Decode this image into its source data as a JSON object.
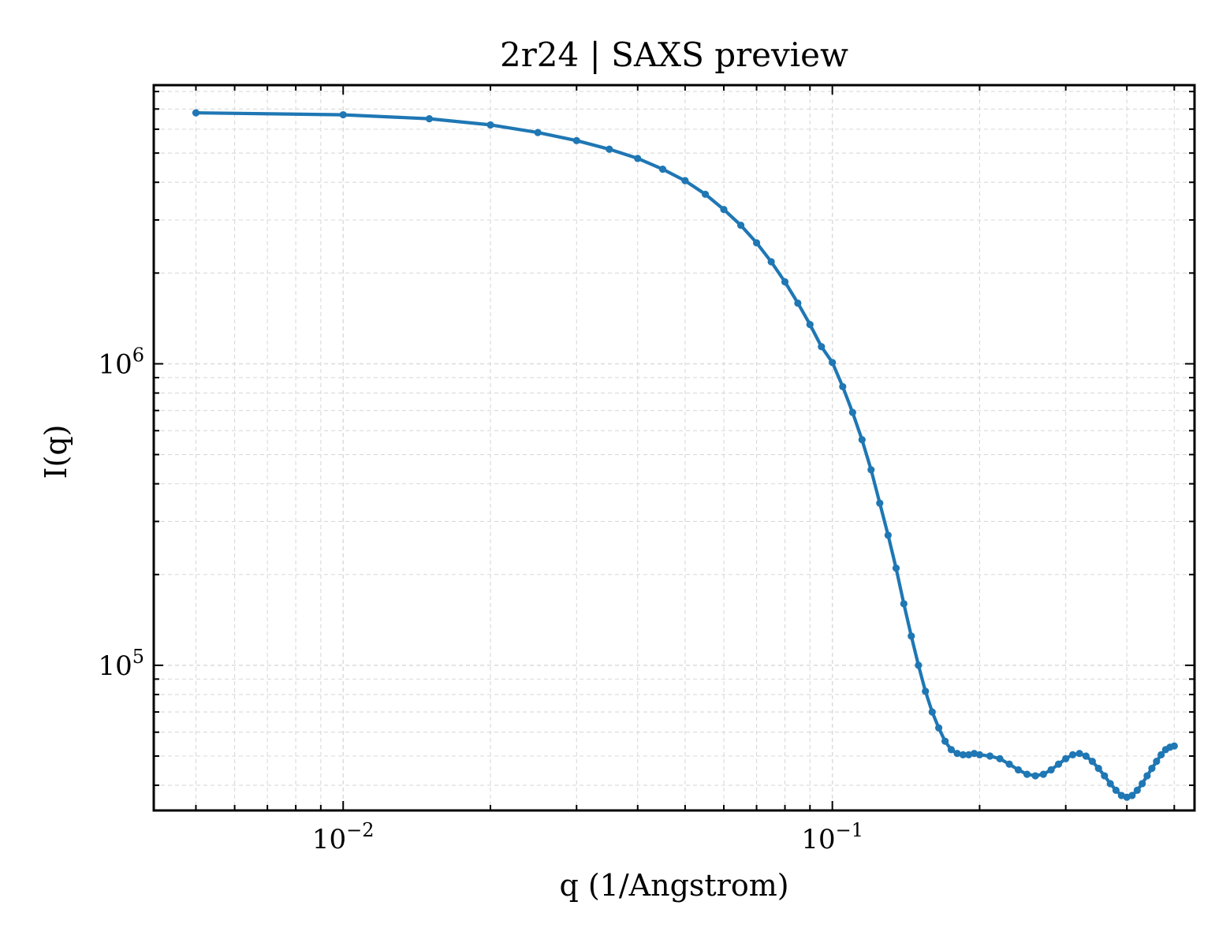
{
  "chart_data": {
    "type": "line",
    "title": "2r24 | SAXS preview",
    "xlabel": "q (1/Angstrom)",
    "ylabel": "I(q)",
    "xscale": "log",
    "yscale": "log",
    "xlim": [
      0.0041,
      0.55
    ],
    "ylim": [
      33000,
      8400000
    ],
    "grid": true,
    "grid_minor": true,
    "legend": "none",
    "colors": {
      "line": "#1f77b4",
      "grid": "#d9d9d9",
      "axes": "#000000"
    },
    "x_tick_labels": [
      {
        "value": 0.01,
        "base": "10",
        "exp": "−2"
      },
      {
        "value": 0.1,
        "base": "10",
        "exp": "−1"
      }
    ],
    "y_tick_labels": [
      {
        "value": 100000,
        "base": "10",
        "exp": "5"
      },
      {
        "value": 1000000,
        "base": "10",
        "exp": "6"
      }
    ],
    "series": [
      {
        "markers": true,
        "x": [
          0.005,
          0.01,
          0.015,
          0.02,
          0.025,
          0.03,
          0.035,
          0.04,
          0.045,
          0.05,
          0.055,
          0.06,
          0.065,
          0.07,
          0.075,
          0.08,
          0.085,
          0.09,
          0.095,
          0.1,
          0.105,
          0.11,
          0.115,
          0.12,
          0.125,
          0.13,
          0.135,
          0.14,
          0.145,
          0.15,
          0.155,
          0.16,
          0.165,
          0.17,
          0.175,
          0.18,
          0.185,
          0.19,
          0.195,
          0.2,
          0.21,
          0.22,
          0.23,
          0.24,
          0.25,
          0.26,
          0.27,
          0.28,
          0.29,
          0.3,
          0.31,
          0.32,
          0.33,
          0.34,
          0.35,
          0.36,
          0.37,
          0.38,
          0.39,
          0.4,
          0.41,
          0.42,
          0.43,
          0.44,
          0.45,
          0.46,
          0.47,
          0.48,
          0.49,
          0.5
        ],
        "y": [
          6800000,
          6700000,
          6500000,
          6200000,
          5850000,
          5500000,
          5150000,
          4800000,
          4420000,
          4050000,
          3650000,
          3250000,
          2880000,
          2520000,
          2180000,
          1870000,
          1590000,
          1350000,
          1140000,
          1010000,
          840000,
          690000,
          560000,
          445000,
          345000,
          270000,
          210000,
          160000,
          125000,
          100000,
          82000,
          70000,
          62000,
          56000,
          52500,
          51000,
          50500,
          50500,
          51000,
          50500,
          50000,
          49000,
          47000,
          45000,
          43500,
          43000,
          43500,
          45000,
          47000,
          49000,
          50500,
          51000,
          50000,
          48000,
          45500,
          43000,
          40500,
          38500,
          37000,
          36500,
          37000,
          38500,
          40500,
          43000,
          45500,
          48000,
          50500,
          52500,
          53500,
          54000
        ]
      }
    ]
  }
}
